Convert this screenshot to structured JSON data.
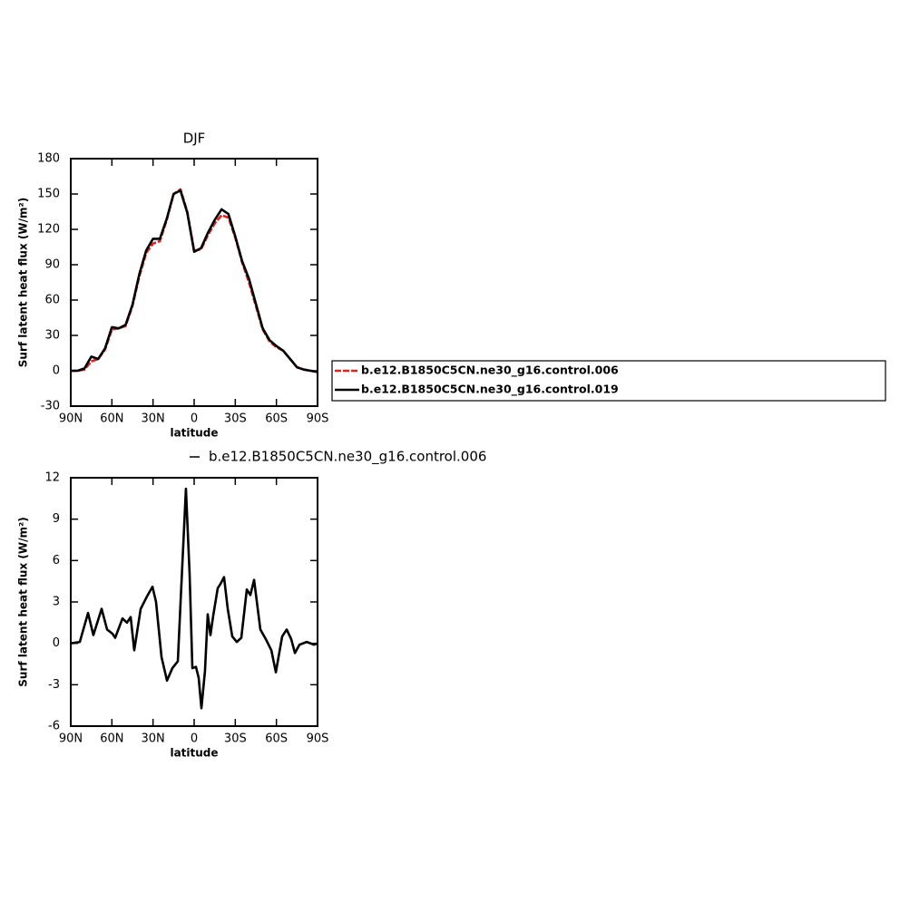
{
  "chart_data": [
    {
      "type": "line",
      "title": "DJF",
      "xlabel": "latitude",
      "ylabel": "Surf latent heat flux (W/m²)",
      "x": [
        90,
        85,
        80,
        75,
        70,
        65,
        60,
        55,
        50,
        45,
        40,
        35,
        30,
        25,
        20,
        15,
        10,
        5,
        0,
        -5,
        -10,
        -15,
        -20,
        -25,
        -30,
        -35,
        -40,
        -45,
        -50,
        -55,
        -60,
        -65,
        -70,
        -75,
        -80,
        -85,
        -90
      ],
      "series": [
        {
          "name": "b.e12.B1850C5CN.ne30_g16.control.006",
          "color": "#e8201c",
          "style": "dashed",
          "values": [
            0,
            0,
            1,
            8,
            10,
            18,
            35,
            36,
            38,
            55,
            80,
            100,
            108,
            110,
            128,
            150,
            154,
            135,
            102,
            103,
            115,
            125,
            132,
            130,
            113,
            92,
            75,
            55,
            35,
            25,
            20,
            17,
            10,
            3,
            1,
            0,
            -1
          ]
        },
        {
          "name": "b.e12.B1850C5CN.ne30_g16.control.019",
          "color": "#000000",
          "style": "solid",
          "values": [
            0,
            0,
            2,
            12,
            10,
            19,
            37,
            36,
            39,
            56,
            82,
            102,
            112,
            112,
            129,
            150,
            153,
            134,
            101,
            104,
            117,
            128,
            137,
            133,
            114,
            93,
            78,
            57,
            36,
            26,
            21,
            17,
            10,
            3,
            1,
            0,
            -1
          ]
        }
      ],
      "xlim": [
        90,
        -90
      ],
      "xticks": [
        {
          "value": 90,
          "label": "90N"
        },
        {
          "value": 60,
          "label": "60N"
        },
        {
          "value": 30,
          "label": "30N"
        },
        0,
        {
          "value": -30,
          "label": "30S"
        },
        {
          "value": -60,
          "label": "60S"
        },
        {
          "value": -90,
          "label": "90S"
        }
      ],
      "ylim": [
        -30,
        180
      ],
      "yticks": [
        -30,
        0,
        30,
        60,
        90,
        120,
        150,
        180
      ],
      "legend": "right"
    },
    {
      "type": "line",
      "xlabel": "latitude",
      "ylabel": "Surf latent heat flux (W/m²)",
      "x": [
        90,
        83.4,
        77.4,
        73.5,
        67.5,
        63.5,
        59.6,
        57.6,
        52.3,
        49,
        46.3,
        43.7,
        39,
        34.4,
        30.4,
        27.8,
        23.8,
        19.8,
        15.9,
        11.9,
        9.9,
        6,
        3.3,
        1.3,
        -1.3,
        -3.3,
        -5.3,
        -7.9,
        -9.9,
        -11.9,
        -13.9,
        -17.2,
        -19.2,
        -21.8,
        -24.5,
        -27.8,
        -31.1,
        -34.4,
        -38.4,
        -41,
        -43.7,
        -48.3,
        -52.3,
        -56.3,
        -59.6,
        -64.2,
        -67.5,
        -70.8,
        -73.5,
        -76.8,
        -82.1,
        -87.4,
        -90
      ],
      "series": [
        {
          "name": "b.e12.B1850C5CN.ne30_g16.control.006",
          "color": "#000000",
          "style": "solid",
          "values": [
            0,
            0.1,
            2.2,
            0.6,
            2.5,
            1.0,
            0.7,
            0.4,
            1.8,
            1.5,
            1.9,
            -0.5,
            2.5,
            3.4,
            4.1,
            3.0,
            -1.0,
            -2.7,
            -1.8,
            -1.3,
            3.0,
            11.2,
            5.0,
            -1.8,
            -1.7,
            -2.5,
            -4.7,
            -2.0,
            2.1,
            0.6,
            2.0,
            4.0,
            4.3,
            4.8,
            2.5,
            0.5,
            0.1,
            0.4,
            3.9,
            3.5,
            4.6,
            1.0,
            0.3,
            -0.5,
            -2.1,
            0.5,
            1.0,
            0.3,
            -0.7,
            -0.1,
            0.1,
            -0.1,
            0
          ]
        }
      ],
      "xlim": [
        90,
        -90
      ],
      "xticks": [
        {
          "value": 90,
          "label": "90N"
        },
        {
          "value": 60,
          "label": "60N"
        },
        {
          "value": 30,
          "label": "30N"
        },
        0,
        {
          "value": -30,
          "label": "30S"
        },
        {
          "value": -60,
          "label": "60S"
        },
        {
          "value": -90,
          "label": "90S"
        }
      ],
      "ylim": [
        -6,
        12
      ],
      "yticks": [
        -6,
        -3,
        0,
        3,
        6,
        9,
        12
      ],
      "legend": "top"
    }
  ]
}
